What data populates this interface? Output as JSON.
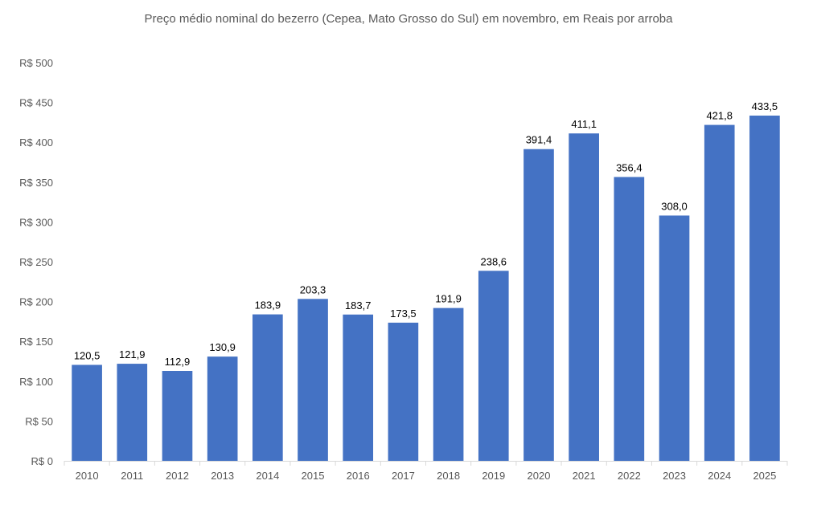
{
  "chart_data": {
    "type": "bar",
    "title": "Preço médio nominal do bezerro (Cepea, Mato Grosso do Sul) em novembro, em Reais por arroba",
    "xlabel": "",
    "ylabel": "",
    "ylim": [
      0,
      500
    ],
    "yticks": [
      0,
      50,
      100,
      150,
      200,
      250,
      300,
      350,
      400,
      450,
      500
    ],
    "ytick_labels": [
      "R$ 0",
      "R$ 50",
      "R$ 100",
      "R$ 150",
      "R$ 200",
      "R$ 250",
      "R$ 300",
      "R$ 350",
      "R$ 400",
      "R$ 450",
      "R$ 500"
    ],
    "categories": [
      "2010",
      "2011",
      "2012",
      "2013",
      "2014",
      "2015",
      "2016",
      "2017",
      "2018",
      "2019",
      "2020",
      "2021",
      "2022",
      "2023",
      "2024",
      "2025"
    ],
    "values": [
      120.5,
      121.9,
      112.9,
      130.9,
      183.9,
      203.3,
      183.7,
      173.5,
      191.9,
      238.6,
      391.4,
      411.1,
      356.4,
      308.0,
      421.8,
      433.5
    ],
    "data_labels": [
      "120,5",
      "121,9",
      "112,9",
      "130,9",
      "183,9",
      "203,3",
      "183,7",
      "173,5",
      "191,9",
      "238,6",
      "391,4",
      "411,1",
      "356,4",
      "308,0",
      "421,8",
      "433,5"
    ],
    "grid": false,
    "legend": "none",
    "colors": {
      "bar": "#4472C4",
      "axis": "#D9D9D9",
      "text": "#595959"
    }
  }
}
